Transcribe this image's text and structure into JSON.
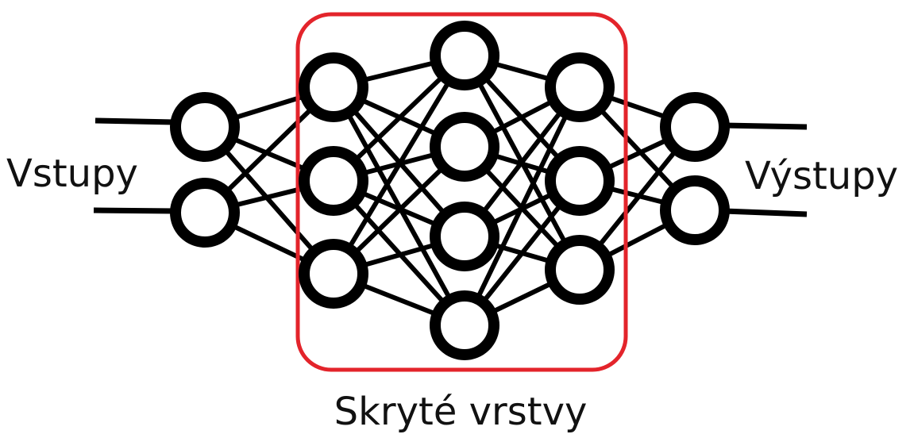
{
  "labels": {
    "inputs": "Vstupy",
    "outputs": "Výstupy",
    "hidden": "Skryté vrstvy"
  }
}
